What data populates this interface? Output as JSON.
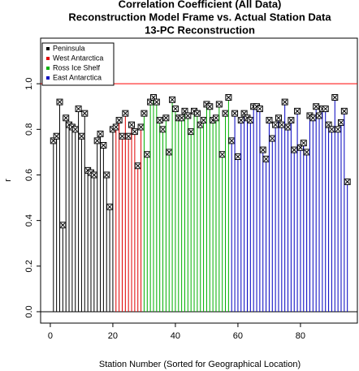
{
  "chart_data": {
    "type": "stem",
    "title_lines": [
      "Correlation Coefficient (All Data)",
      "Reconstruction Model Frame vs. Actual Station Data",
      "13-PC Reconstruction"
    ],
    "xlabel": "Station Number (Sorted for Geographical Location)",
    "ylabel": "r",
    "xlim": [
      -3.1,
      98.2
    ],
    "ylim": [
      -0.05,
      1.2
    ],
    "xticks": [
      0,
      20,
      40,
      60,
      80
    ],
    "yticks": [
      {
        "value": 0,
        "label": "0.0"
      },
      {
        "value": 0.2,
        "label": "0.2"
      },
      {
        "value": 0.4,
        "label": "0.4"
      },
      {
        "value": 0.6,
        "label": "0.6"
      },
      {
        "value": 0.8,
        "label": "0.8"
      },
      {
        "value": 1,
        "label": "1.0"
      }
    ],
    "hlines": [
      {
        "value": 1,
        "color": "#ff0000"
      },
      {
        "value": 0,
        "color": "#000000"
      }
    ],
    "legend": "top-left",
    "series": [
      {
        "name": "Peninsula",
        "color": "#000000",
        "x": [
          1,
          2,
          3,
          4,
          5,
          6,
          7,
          8,
          9,
          10,
          11,
          12,
          13,
          14,
          15,
          16,
          17,
          18,
          19,
          20
        ],
        "values": [
          0.75,
          0.77,
          0.92,
          0.38,
          0.85,
          0.82,
          0.81,
          0.8,
          0.89,
          0.77,
          0.87,
          0.62,
          0.61,
          0.6,
          0.75,
          0.78,
          0.73,
          0.6,
          0.46,
          0.8
        ]
      },
      {
        "name": "West Antarctica",
        "color": "#e00000",
        "x": [
          21,
          22,
          23,
          24,
          25,
          26,
          27,
          28,
          29
        ],
        "values": [
          0.81,
          0.84,
          0.77,
          0.87,
          0.77,
          0.82,
          0.79,
          0.64,
          0.81
        ]
      },
      {
        "name": "Ross Ice Shelf",
        "color": "#00b000",
        "x": [
          30,
          31,
          32,
          33,
          34,
          35,
          36,
          37,
          38,
          39,
          40,
          41,
          42,
          43,
          44,
          45,
          46,
          47,
          48,
          49,
          50,
          51,
          52,
          53,
          54,
          55,
          56,
          57
        ],
        "values": [
          0.87,
          0.69,
          0.92,
          0.94,
          0.92,
          0.84,
          0.8,
          0.85,
          0.7,
          0.93,
          0.89,
          0.85,
          0.85,
          0.88,
          0.86,
          0.79,
          0.88,
          0.87,
          0.82,
          0.84,
          0.91,
          0.9,
          0.84,
          0.85,
          0.91,
          0.69,
          0.87,
          0.94
        ]
      },
      {
        "name": "East Antarctica",
        "color": "#0000c0",
        "x": [
          58,
          59,
          60,
          61,
          62,
          63,
          64,
          65,
          66,
          67,
          68,
          69,
          70,
          71,
          72,
          73,
          74,
          75,
          76,
          77,
          78,
          79,
          80,
          81,
          82,
          83,
          84,
          85,
          86,
          87,
          88,
          89,
          90,
          91,
          92,
          93,
          94,
          95
        ],
        "values": [
          0.75,
          0.87,
          0.68,
          0.84,
          0.87,
          0.85,
          0.84,
          0.9,
          0.9,
          0.89,
          0.71,
          0.67,
          0.84,
          0.76,
          0.82,
          0.85,
          0.82,
          0.92,
          0.81,
          0.84,
          0.71,
          0.88,
          0.72,
          0.74,
          0.7,
          0.86,
          0.85,
          0.9,
          0.86,
          0.89,
          0.89,
          0.82,
          0.8,
          0.94,
          0.8,
          0.83,
          0.88,
          0.57
        ]
      }
    ]
  }
}
